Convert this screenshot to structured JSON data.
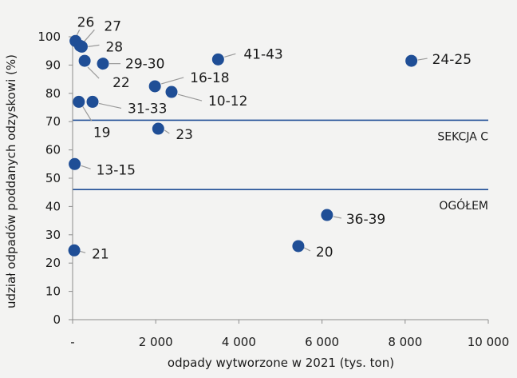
{
  "chart_data": {
    "type": "scatter",
    "title": "",
    "xlabel": "odpady wytworzone w 2021 (tys. ton)",
    "ylabel": "udział odpadów poddanych odzyskowi (%)",
    "xlim": [
      0,
      10000
    ],
    "ylim": [
      0,
      100
    ],
    "x_ticks": [
      0,
      2000,
      4000,
      6000,
      8000,
      10000
    ],
    "x_tick_labels": [
      "-",
      "2 000",
      "4 000",
      "6 000",
      "8 000",
      "10 000"
    ],
    "y_ticks": [
      0,
      10,
      20,
      30,
      40,
      50,
      60,
      70,
      80,
      90,
      100
    ],
    "y_tick_labels": [
      "0",
      "10",
      "20",
      "30",
      "40",
      "50",
      "60",
      "70",
      "80",
      "90",
      "100"
    ],
    "grid": false,
    "marker_color": "#1f4e96",
    "reference_lines": [
      {
        "label": "SEKCJA C",
        "y": 70.5,
        "color": "#1f4e96"
      },
      {
        "label": "OGÓŁEM",
        "y": 46,
        "color": "#1f4e96"
      }
    ],
    "points": [
      {
        "label": "26",
        "x": 70,
        "y": 98.5
      },
      {
        "label": "27",
        "x": 180,
        "y": 96.8
      },
      {
        "label": "28",
        "x": 220,
        "y": 96.5
      },
      {
        "label": "29-30",
        "x": 730,
        "y": 90.5
      },
      {
        "label": "22",
        "x": 290,
        "y": 91.5
      },
      {
        "label": "41-43",
        "x": 3500,
        "y": 92
      },
      {
        "label": "24-25",
        "x": 8150,
        "y": 91.5
      },
      {
        "label": "16-18",
        "x": 1980,
        "y": 82.5
      },
      {
        "label": "10-12",
        "x": 2380,
        "y": 80.5
      },
      {
        "label": "31-33",
        "x": 480,
        "y": 77
      },
      {
        "label": "19",
        "x": 150,
        "y": 77
      },
      {
        "label": "23",
        "x": 2060,
        "y": 67.5
      },
      {
        "label": "13-15",
        "x": 50,
        "y": 55
      },
      {
        "label": "36-39",
        "x": 6120,
        "y": 37
      },
      {
        "label": "20",
        "x": 5430,
        "y": 26
      },
      {
        "label": "21",
        "x": 40,
        "y": 24.5
      }
    ]
  }
}
